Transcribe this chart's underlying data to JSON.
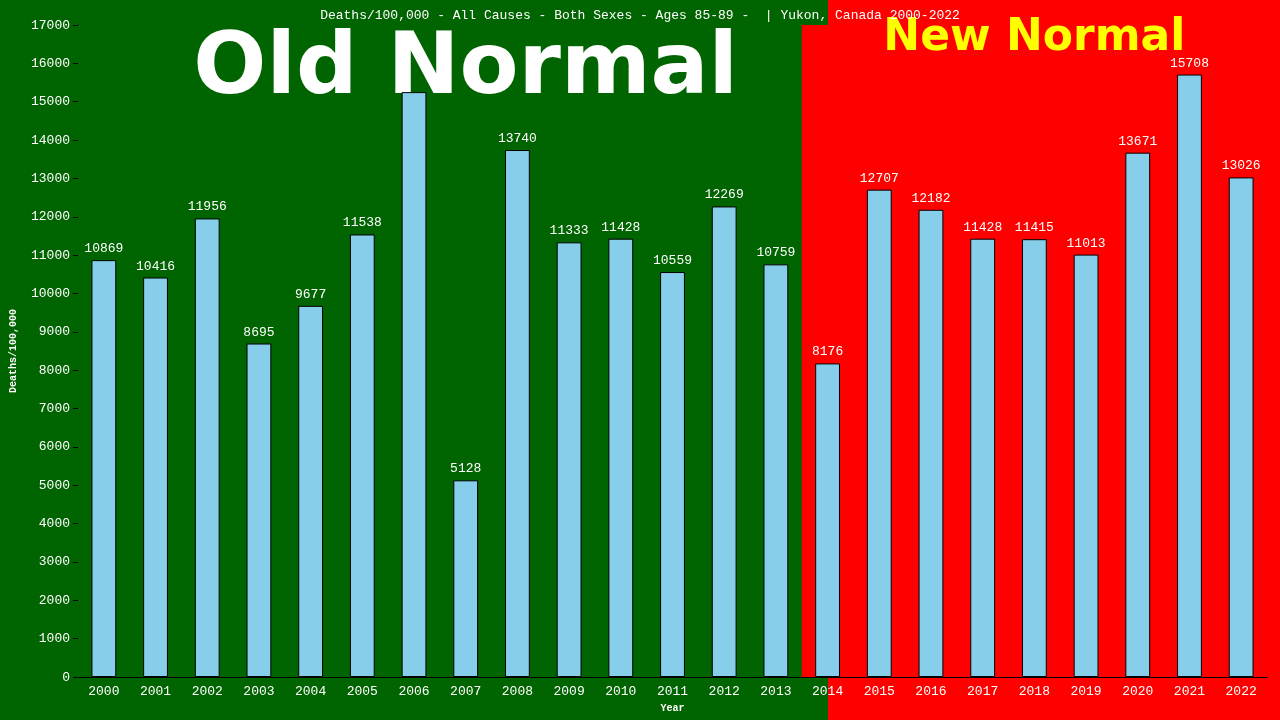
{
  "chart_data": {
    "type": "bar",
    "title": "Deaths/100,000 - All Causes - Both Sexes - Ages 85-89 -  | Yukon, Canada 2000-2022",
    "xlabel": "Year",
    "ylabel": "Deaths/100,000",
    "categories": [
      "2000",
      "2001",
      "2002",
      "2003",
      "2004",
      "2005",
      "2006",
      "2007",
      "2008",
      "2009",
      "2010",
      "2011",
      "2012",
      "2013",
      "2014",
      "2015",
      "2016",
      "2017",
      "2018",
      "2019",
      "2020",
      "2021",
      "2022"
    ],
    "values": [
      10869,
      10416,
      11956,
      8695,
      9677,
      11538,
      15250,
      5128,
      13740,
      11333,
      11428,
      10559,
      12269,
      10759,
      8176,
      12707,
      12182,
      11428,
      11415,
      11013,
      13671,
      15708,
      13026
    ],
    "value_labels": [
      "10869",
      "10416",
      "11956",
      "8695",
      "9677",
      "11538",
      null,
      "5128",
      "13740",
      "11333",
      "11428",
      "10559",
      "12269",
      "10759",
      "8176",
      "12707",
      "12182",
      "11428",
      "11415",
      "11013",
      "13671",
      "15708",
      "13026"
    ],
    "color": "#87ceeb",
    "ylim": [
      0,
      17000
    ],
    "yticks": [
      0,
      1000,
      2000,
      3000,
      4000,
      5000,
      6000,
      7000,
      8000,
      9000,
      10000,
      11000,
      12000,
      13000,
      14000,
      15000,
      16000,
      17000
    ],
    "grid": false,
    "bands": [
      {
        "axis": "x",
        "from": "2000",
        "to": "2014",
        "label": "Old Normal",
        "color": "#006400"
      },
      {
        "axis": "x",
        "from": "2014",
        "to": "2022",
        "label": "New Normal",
        "color": "#ff0000"
      }
    ]
  }
}
